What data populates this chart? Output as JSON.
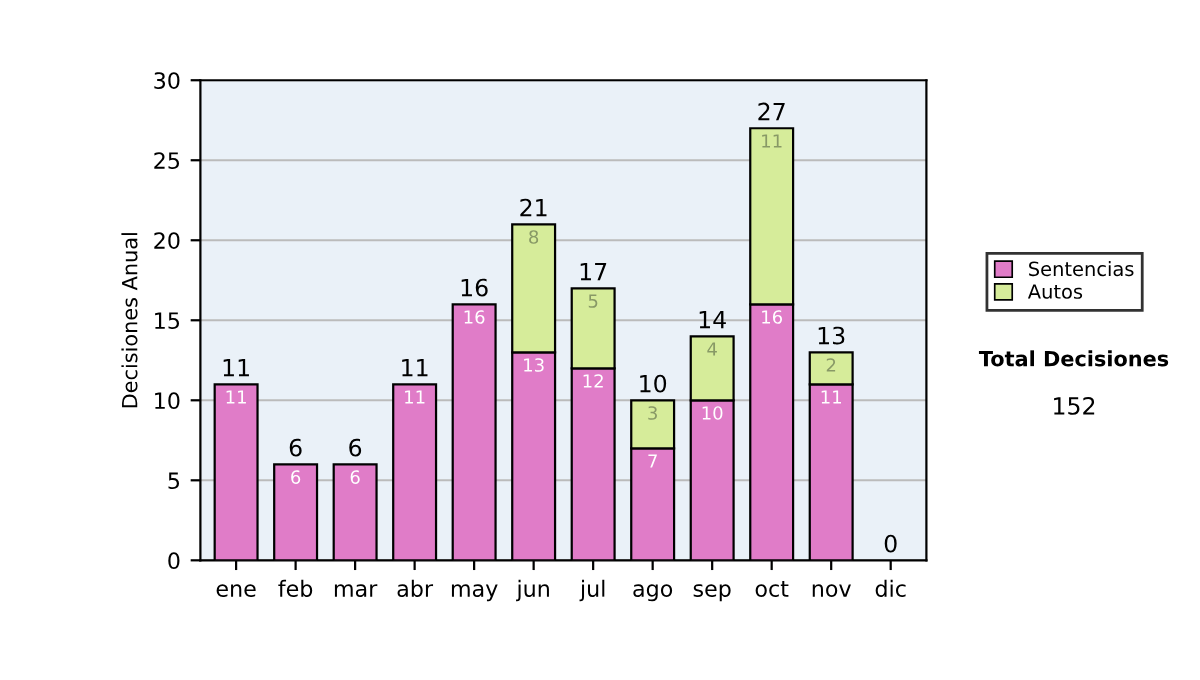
{
  "chart_data": {
    "type": "bar",
    "stacked": true,
    "ylabel": "Decisiones Anual",
    "categories": [
      "ene",
      "feb",
      "mar",
      "abr",
      "may",
      "jun",
      "jul",
      "ago",
      "sep",
      "oct",
      "nov",
      "dic"
    ],
    "series": [
      {
        "name": "Sentencias",
        "color": "#e07cc8",
        "values": [
          11,
          6,
          6,
          11,
          16,
          13,
          12,
          7,
          10,
          16,
          11,
          0
        ],
        "value_labels": [
          "11",
          "6",
          "6",
          "11",
          "16",
          "13",
          "12",
          "7",
          "10",
          "16",
          "11",
          null
        ]
      },
      {
        "name": "Autos",
        "color": "#d6ec9a",
        "values": [
          0,
          0,
          0,
          0,
          0,
          8,
          5,
          3,
          4,
          11,
          2,
          0
        ],
        "value_labels": [
          null,
          null,
          null,
          null,
          null,
          "8",
          "5",
          "3",
          "4",
          "11",
          "2",
          null
        ]
      }
    ],
    "totals": [
      "11",
      "6",
      "6",
      "11",
      "16",
      "21",
      "17",
      "10",
      "14",
      "27",
      "13",
      "0"
    ],
    "ylim": [
      0,
      30
    ],
    "yticks": [
      0,
      5,
      10,
      15,
      20,
      25,
      30
    ],
    "grid": "y",
    "legend": "right",
    "annotations": [
      "Total Decisiones",
      "152"
    ]
  }
}
